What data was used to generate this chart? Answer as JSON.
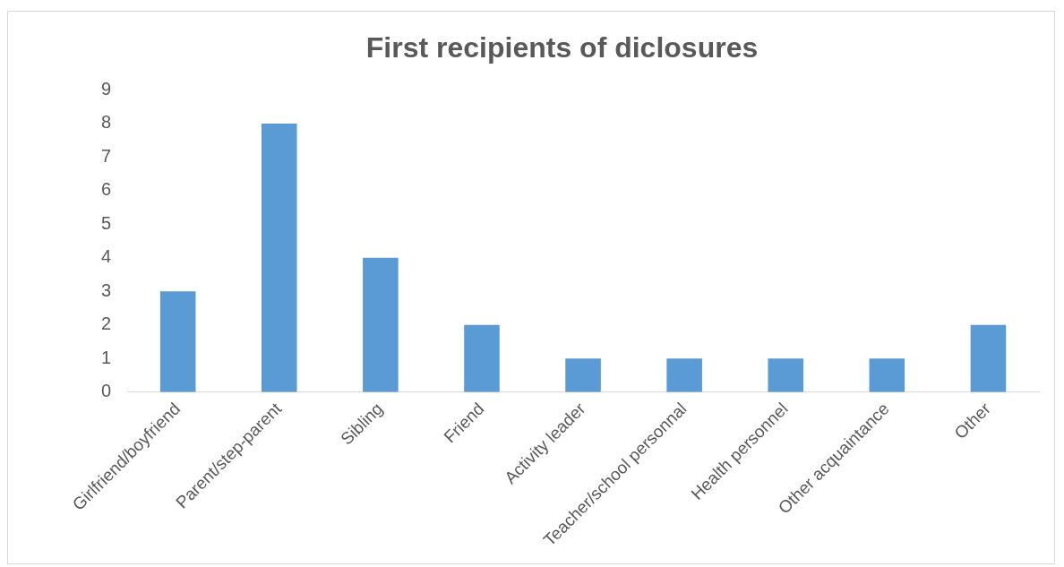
{
  "chart_data": {
    "type": "bar",
    "title": "First recipients of diclosures",
    "categories": [
      "Girlfriend/boyfriend",
      "Parent/step-parent",
      "Sibling",
      "Friend",
      "Activity leader",
      "Teacher/school personnal",
      "Health personnel",
      "Other acquaintance",
      "Other"
    ],
    "values": [
      3,
      8,
      4,
      2,
      1,
      1,
      1,
      1,
      2
    ],
    "color": "#5b9bd5",
    "ylim": [
      0,
      9
    ],
    "yticks": [
      0,
      1,
      2,
      3,
      4,
      5,
      6,
      7,
      8,
      9
    ]
  }
}
